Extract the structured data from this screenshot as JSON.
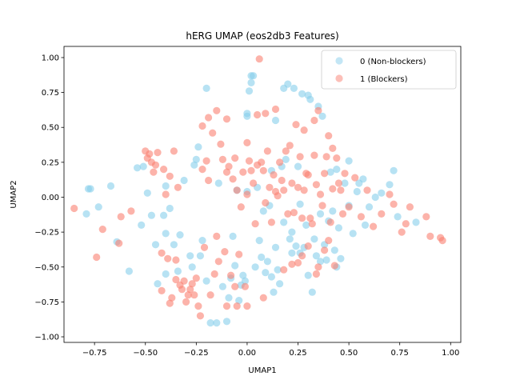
{
  "chart_data": {
    "type": "scatter",
    "title": "hERG UMAP (eos2db3 Features)",
    "xlabel": "UMAP1",
    "ylabel": "UMAP2",
    "xlim": [
      -0.9,
      1.05
    ],
    "ylim": [
      -1.04,
      1.08
    ],
    "xticks": [
      -0.75,
      -0.5,
      -0.25,
      0.0,
      0.25,
      0.5,
      0.75,
      1.0
    ],
    "xtick_labels": [
      "−0.75",
      "−0.50",
      "−0.25",
      "0.00",
      "0.25",
      "0.50",
      "0.75",
      "1.00"
    ],
    "yticks": [
      -1.0,
      -0.75,
      -0.5,
      -0.25,
      0.0,
      0.25,
      0.5,
      0.75,
      1.0
    ],
    "ytick_labels": [
      "−1.00",
      "−0.75",
      "−0.50",
      "−0.25",
      "0.00",
      "0.25",
      "0.50",
      "0.75",
      "1.00"
    ],
    "grid": false,
    "legend": "top-right",
    "series": [
      {
        "name": "0 (Non-blockers)",
        "color": "#87ceeb",
        "points": [
          [
            -0.78,
            0.06
          ],
          [
            -0.77,
            0.06
          ],
          [
            -0.79,
            -0.12
          ],
          [
            -0.73,
            -0.07
          ],
          [
            -0.67,
            0.08
          ],
          [
            -0.64,
            -0.32
          ],
          [
            -0.58,
            -0.53
          ],
          [
            -0.54,
            0.21
          ],
          [
            -0.51,
            0.22
          ],
          [
            -0.52,
            -0.2
          ],
          [
            -0.49,
            0.03
          ],
          [
            -0.47,
            -0.13
          ],
          [
            -0.45,
            -0.34
          ],
          [
            -0.44,
            -0.62
          ],
          [
            -0.41,
            -0.13
          ],
          [
            -0.4,
            -0.26
          ],
          [
            -0.4,
            0.08
          ],
          [
            -0.4,
            -0.55
          ],
          [
            -0.38,
            -0.08
          ],
          [
            -0.36,
            -0.34
          ],
          [
            -0.34,
            -0.53
          ],
          [
            -0.33,
            -0.27
          ],
          [
            -0.31,
            0.12
          ],
          [
            -0.28,
            -0.42
          ],
          [
            -0.27,
            -0.5
          ],
          [
            -0.26,
            0.23
          ],
          [
            -0.25,
            0.27
          ],
          [
            -0.24,
            0.36
          ],
          [
            -0.23,
            -0.42
          ],
          [
            -0.22,
            -0.31
          ],
          [
            -0.2,
            0.78
          ],
          [
            -0.2,
            -0.6
          ],
          [
            -0.18,
            -0.9
          ],
          [
            -0.15,
            -0.9
          ],
          [
            -0.14,
            0.1
          ],
          [
            -0.12,
            -0.64
          ],
          [
            -0.1,
            -0.89
          ],
          [
            -0.09,
            -0.72
          ],
          [
            -0.08,
            -0.58
          ],
          [
            -0.07,
            -0.28
          ],
          [
            -0.06,
            -0.49
          ],
          [
            -0.05,
            0.05
          ],
          [
            -0.04,
            -0.74
          ],
          [
            -0.03,
            -0.63
          ],
          [
            -0.02,
            -0.56
          ],
          [
            -0.01,
            -0.6
          ],
          [
            0.0,
            0.04
          ],
          [
            0.0,
            0.6
          ],
          [
            0.0,
            0.58
          ],
          [
            0.01,
            0.76
          ],
          [
            0.02,
            0.87
          ],
          [
            0.02,
            0.82
          ],
          [
            0.03,
            0.87
          ],
          [
            0.04,
            -0.5
          ],
          [
            0.05,
            0.07
          ],
          [
            0.06,
            -0.31
          ],
          [
            0.07,
            -0.43
          ],
          [
            0.08,
            -0.1
          ],
          [
            0.09,
            -0.54
          ],
          [
            0.1,
            -0.46
          ],
          [
            0.11,
            -0.06
          ],
          [
            0.12,
            0.19
          ],
          [
            0.13,
            -0.68
          ],
          [
            0.14,
            0.55
          ],
          [
            0.15,
            -0.52
          ],
          [
            0.17,
            0.22
          ],
          [
            0.18,
            0.78
          ],
          [
            0.19,
            0.27
          ],
          [
            0.2,
            0.81
          ],
          [
            0.21,
            -0.3
          ],
          [
            0.22,
            -0.4
          ],
          [
            0.23,
            0.78
          ],
          [
            0.24,
            -0.35
          ],
          [
            0.25,
            0.22
          ],
          [
            0.26,
            -0.05
          ],
          [
            0.27,
            0.74
          ],
          [
            0.28,
            -0.36
          ],
          [
            0.29,
            -0.2
          ],
          [
            0.3,
            0.73
          ],
          [
            0.31,
            0.7
          ],
          [
            0.32,
            -0.68
          ],
          [
            0.33,
            -0.3
          ],
          [
            0.34,
            -0.42
          ],
          [
            0.35,
            0.65
          ],
          [
            0.36,
            -0.12
          ],
          [
            0.37,
            0.58
          ],
          [
            0.38,
            -0.34
          ],
          [
            0.39,
            -0.45
          ],
          [
            0.4,
            -0.17
          ],
          [
            0.41,
            0.18
          ],
          [
            0.42,
            -0.1
          ],
          [
            0.43,
            -0.38
          ],
          [
            0.44,
            0.2
          ],
          [
            0.45,
            -0.22
          ],
          [
            0.46,
            -0.44
          ],
          [
            0.48,
            0.1
          ],
          [
            0.5,
            -0.06
          ],
          [
            0.52,
            -0.26
          ],
          [
            0.55,
            0.1
          ],
          [
            0.57,
            0.13
          ],
          [
            0.6,
            -0.07
          ],
          [
            0.63,
            0.0
          ],
          [
            0.66,
            0.03
          ],
          [
            0.7,
            0.09
          ],
          [
            0.72,
            0.19
          ],
          [
            0.74,
            -0.14
          ],
          [
            0.83,
            -0.18
          ],
          [
            0.5,
            0.26
          ],
          [
            0.54,
            0.04
          ],
          [
            0.58,
            -0.2
          ],
          [
            0.44,
            -0.5
          ],
          [
            0.36,
            -0.46
          ],
          [
            0.3,
            -0.56
          ],
          [
            0.26,
            -0.4
          ],
          [
            0.22,
            -0.25
          ],
          [
            0.18,
            -0.18
          ],
          [
            0.14,
            -0.36
          ],
          [
            0.12,
            -0.57
          ],
          [
            0.16,
            -0.62
          ]
        ]
      },
      {
        "name": "1 (Blockers)",
        "color": "#fa8072",
        "points": [
          [
            -0.85,
            -0.08
          ],
          [
            -0.74,
            -0.43
          ],
          [
            -0.71,
            -0.23
          ],
          [
            -0.63,
            -0.33
          ],
          [
            -0.62,
            -0.14
          ],
          [
            -0.57,
            -0.1
          ],
          [
            -0.5,
            0.33
          ],
          [
            -0.49,
            0.28
          ],
          [
            -0.48,
            0.31
          ],
          [
            -0.47,
            0.25
          ],
          [
            -0.46,
            0.18
          ],
          [
            -0.45,
            0.23
          ],
          [
            -0.44,
            0.32
          ],
          [
            -0.42,
            -0.4
          ],
          [
            -0.41,
            0.2
          ],
          [
            -0.4,
            0.02
          ],
          [
            -0.39,
            -0.44
          ],
          [
            -0.38,
            0.15
          ],
          [
            -0.37,
            -0.72
          ],
          [
            -0.36,
            0.33
          ],
          [
            -0.35,
            -0.59
          ],
          [
            -0.34,
            0.07
          ],
          [
            -0.33,
            -0.63
          ],
          [
            -0.32,
            -0.66
          ],
          [
            -0.31,
            -0.6
          ],
          [
            -0.3,
            -0.75
          ],
          [
            -0.29,
            -0.7
          ],
          [
            -0.28,
            -0.66
          ],
          [
            -0.27,
            -0.62
          ],
          [
            -0.26,
            -0.7
          ],
          [
            -0.25,
            -0.58
          ],
          [
            -0.24,
            -0.78
          ],
          [
            -0.23,
            -0.85
          ],
          [
            -0.22,
            0.2
          ],
          [
            -0.21,
            -0.36
          ],
          [
            -0.2,
            0.26
          ],
          [
            -0.19,
            0.12
          ],
          [
            -0.18,
            -0.7
          ],
          [
            -0.17,
            0.46
          ],
          [
            -0.16,
            -0.55
          ],
          [
            -0.15,
            -0.28
          ],
          [
            -0.14,
            -0.46
          ],
          [
            -0.13,
            0.38
          ],
          [
            -0.12,
            0.27
          ],
          [
            -0.11,
            -0.39
          ],
          [
            -0.1,
            0.18
          ],
          [
            -0.09,
            0.22
          ],
          [
            -0.08,
            -0.56
          ],
          [
            -0.07,
            0.13
          ],
          [
            -0.06,
            0.28
          ],
          [
            -0.05,
            0.05
          ],
          [
            -0.04,
            -0.41
          ],
          [
            -0.03,
            -0.07
          ],
          [
            -0.02,
            0.18
          ],
          [
            -0.01,
            -0.64
          ],
          [
            0.0,
            0.02
          ],
          [
            0.01,
            0.26
          ],
          [
            0.02,
            0.19
          ],
          [
            0.03,
            0.1
          ],
          [
            0.04,
            -0.19
          ],
          [
            0.05,
            0.23
          ],
          [
            0.06,
            0.99
          ],
          [
            0.07,
            0.25
          ],
          [
            0.08,
            0.19
          ],
          [
            0.09,
            -0.04
          ],
          [
            0.1,
            0.33
          ],
          [
            0.11,
            0.07
          ],
          [
            0.12,
            -0.18
          ],
          [
            0.13,
            0.16
          ],
          [
            0.14,
            0.04
          ],
          [
            0.15,
            0.01
          ],
          [
            0.16,
            0.25
          ],
          [
            0.17,
            0.12
          ],
          [
            0.18,
            0.05
          ],
          [
            0.19,
            0.33
          ],
          [
            0.2,
            -0.12
          ],
          [
            0.21,
            0.37
          ],
          [
            0.22,
            0.1
          ],
          [
            0.23,
            -0.11
          ],
          [
            0.24,
            0.52
          ],
          [
            0.25,
            0.07
          ],
          [
            0.26,
            0.29
          ],
          [
            0.27,
            -0.15
          ],
          [
            0.28,
            0.05
          ],
          [
            0.29,
            0.17
          ],
          [
            0.3,
            0.16
          ],
          [
            0.31,
            -0.15
          ],
          [
            0.32,
            -0.19
          ],
          [
            0.33,
            0.3
          ],
          [
            0.34,
            0.09
          ],
          [
            0.35,
            0.62
          ],
          [
            0.36,
            0.02
          ],
          [
            0.37,
            -0.06
          ],
          [
            0.38,
            0.17
          ],
          [
            0.39,
            0.29
          ],
          [
            0.4,
            -0.31
          ],
          [
            0.41,
            -0.18
          ],
          [
            0.42,
            0.06
          ],
          [
            0.43,
            -0.49
          ],
          [
            0.44,
            0.28
          ],
          [
            0.45,
            0.1
          ],
          [
            0.46,
            0.05
          ],
          [
            0.47,
            -0.12
          ],
          [
            0.48,
            0.17
          ],
          [
            0.5,
            -0.07
          ],
          [
            0.53,
            0.14
          ],
          [
            0.56,
            -0.14
          ],
          [
            0.59,
            0.05
          ],
          [
            0.62,
            -0.21
          ],
          [
            0.66,
            -0.12
          ],
          [
            0.72,
            -0.05
          ],
          [
            0.76,
            -0.25
          ],
          [
            0.8,
            -0.07
          ],
          [
            0.88,
            -0.14
          ],
          [
            0.95,
            -0.29
          ],
          [
            0.96,
            -0.31
          ],
          [
            0.9,
            -0.28
          ],
          [
            0.78,
            -0.19
          ],
          [
            0.7,
            0.02
          ],
          [
            -0.22,
            0.51
          ],
          [
            -0.19,
            0.57
          ],
          [
            -0.15,
            0.62
          ],
          [
            -0.1,
            0.56
          ],
          [
            0.0,
            0.39
          ],
          [
            0.05,
            0.59
          ],
          [
            0.09,
            0.6
          ],
          [
            0.14,
            0.63
          ],
          [
            0.28,
            0.48
          ],
          [
            0.33,
            0.55
          ],
          [
            0.4,
            0.44
          ],
          [
            0.42,
            0.35
          ],
          [
            0.3,
            -0.35
          ],
          [
            0.27,
            -0.42
          ],
          [
            0.25,
            -0.47
          ],
          [
            0.35,
            -0.5
          ],
          [
            0.38,
            -0.38
          ],
          [
            0.34,
            -0.55
          ],
          [
            0.22,
            -0.48
          ],
          [
            0.18,
            -0.52
          ],
          [
            0.08,
            -0.72
          ],
          [
            0.0,
            -0.78
          ],
          [
            -0.05,
            -0.78
          ],
          [
            -0.1,
            -0.78
          ],
          [
            -0.06,
            -0.64
          ],
          [
            -0.38,
            -0.76
          ],
          [
            -0.42,
            -0.67
          ],
          [
            -0.35,
            -0.45
          ]
        ]
      }
    ]
  }
}
